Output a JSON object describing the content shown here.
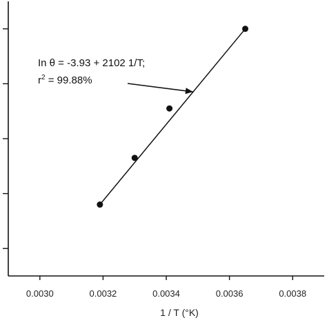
{
  "chart_data": {
    "type": "scatter",
    "xlabel": "1 / T (°K)",
    "ylabel": "",
    "xlim": [
      0.0029,
      0.0039
    ],
    "ylim": [
      0.0,
      1.0
    ],
    "x_ticks": [
      "0.0030",
      "0.0032",
      "0.0034",
      "0.0036",
      "0.0038"
    ],
    "x_tick_values": [
      0.003,
      0.0032,
      0.0034,
      0.0036,
      0.0038
    ],
    "y_tick_values": [
      0.1,
      0.3,
      0.5,
      0.7,
      0.9
    ],
    "y_tick_labels_visible": false,
    "points": [
      {
        "x": 0.00319,
        "y": 0.26
      },
      {
        "x": 0.0033,
        "y": 0.43
      },
      {
        "x": 0.00341,
        "y": 0.61
      },
      {
        "x": 0.00365,
        "y": 0.9
      }
    ],
    "fit_line": {
      "x": [
        0.00319,
        0.00365
      ],
      "y": [
        0.26,
        0.9
      ]
    },
    "annotation": {
      "line1": "In  θ = -3.93  + 2102  1/T;",
      "line2_prefix": "r",
      "line2_sup": "2",
      "line2_rest": " = 99.88%"
    },
    "grid": false,
    "legend": "none",
    "colors": {
      "axis": "#111111",
      "marker": "#111111",
      "line": "#111111"
    }
  }
}
